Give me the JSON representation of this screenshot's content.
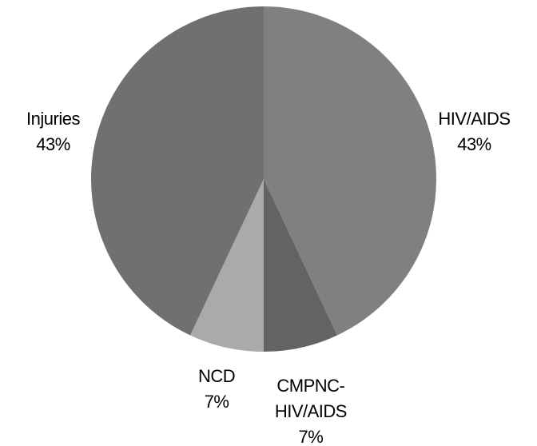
{
  "chart_data": {
    "type": "pie",
    "categories": [
      "HIV/AIDS",
      "CMPNC-HIV/AIDS",
      "NCD",
      "Injuries"
    ],
    "values": [
      43,
      7,
      7,
      43
    ],
    "value_labels": [
      "43%",
      "7%",
      "7%",
      "43%"
    ],
    "colors": [
      "#808080",
      "#636363",
      "#aaaaaa",
      "#707070"
    ]
  }
}
